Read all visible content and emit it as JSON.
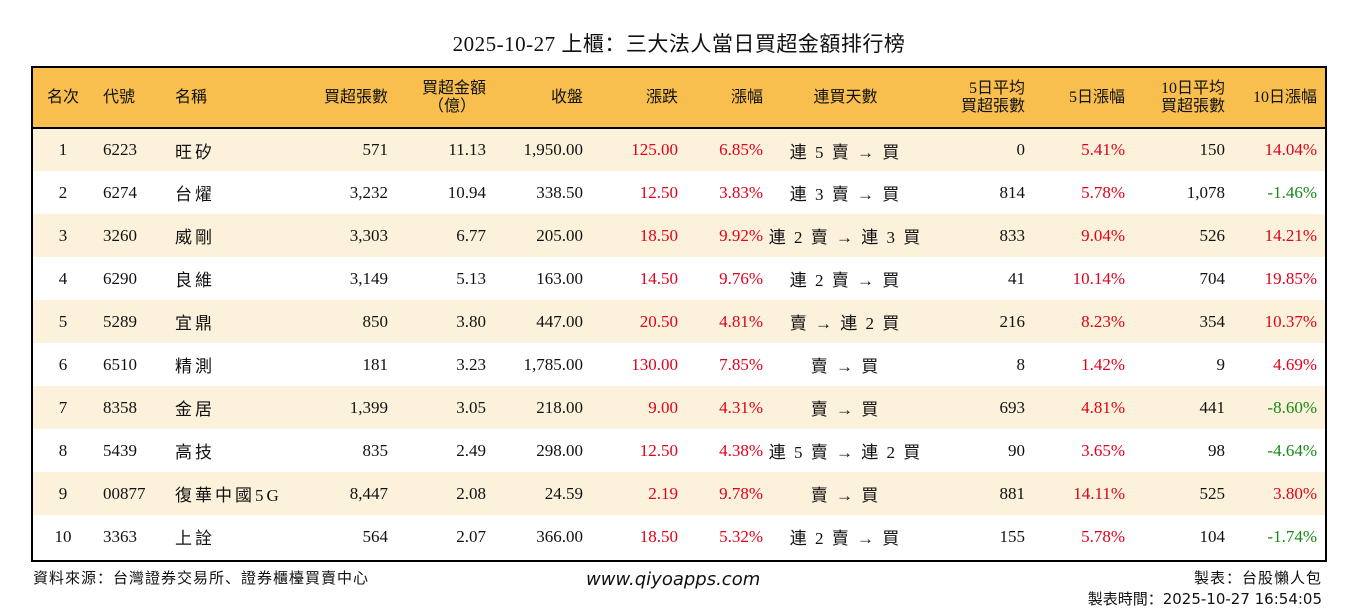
{
  "title": "2025-10-27 上櫃：三大法人當日買超金額排行榜",
  "colors": {
    "header_bg": "#f8bf4e",
    "row_alt_bg": "#fcf1da",
    "up": "#e0001b",
    "down": "#168a16"
  },
  "table": {
    "headers": {
      "rank": "名次",
      "code": "代號",
      "name": "名稱",
      "net_buy_lots": "買超張數",
      "net_buy_amount_1": "買超金額",
      "net_buy_amount_2": "（億）",
      "close": "收盤",
      "change": "漲跌",
      "change_pct": "漲幅",
      "streak": "連買天數",
      "avg5_1": "5日平均",
      "avg5_2": "買超張數",
      "pct5": "5日漲幅",
      "avg10_1": "10日平均",
      "avg10_2": "買超張數",
      "pct10": "10日漲幅"
    },
    "rows": [
      {
        "rank": "1",
        "code": "6223",
        "name": "旺矽",
        "lots": "571",
        "amount": "11.13",
        "close": "1,950.00",
        "change": "125.00",
        "change_pct": "6.85%",
        "streak": "連 5 賣 → 買",
        "avg5": "0",
        "pct5": "5.41%",
        "avg10": "150",
        "pct10": "14.04%",
        "pct10_dir": "up"
      },
      {
        "rank": "2",
        "code": "6274",
        "name": "台燿",
        "lots": "3,232",
        "amount": "10.94",
        "close": "338.50",
        "change": "12.50",
        "change_pct": "3.83%",
        "streak": "連 3 賣 → 買",
        "avg5": "814",
        "pct5": "5.78%",
        "avg10": "1,078",
        "pct10": "-1.46%",
        "pct10_dir": "down"
      },
      {
        "rank": "3",
        "code": "3260",
        "name": "威剛",
        "lots": "3,303",
        "amount": "6.77",
        "close": "205.00",
        "change": "18.50",
        "change_pct": "9.92%",
        "streak": "連 2 賣 → 連 3 買",
        "avg5": "833",
        "pct5": "9.04%",
        "avg10": "526",
        "pct10": "14.21%",
        "pct10_dir": "up"
      },
      {
        "rank": "4",
        "code": "6290",
        "name": "良維",
        "lots": "3,149",
        "amount": "5.13",
        "close": "163.00",
        "change": "14.50",
        "change_pct": "9.76%",
        "streak": "連 2 賣 → 買",
        "avg5": "41",
        "pct5": "10.14%",
        "avg10": "704",
        "pct10": "19.85%",
        "pct10_dir": "up"
      },
      {
        "rank": "5",
        "code": "5289",
        "name": "宜鼎",
        "lots": "850",
        "amount": "3.80",
        "close": "447.00",
        "change": "20.50",
        "change_pct": "4.81%",
        "streak": "賣 → 連 2 買",
        "avg5": "216",
        "pct5": "8.23%",
        "avg10": "354",
        "pct10": "10.37%",
        "pct10_dir": "up"
      },
      {
        "rank": "6",
        "code": "6510",
        "name": "精測",
        "lots": "181",
        "amount": "3.23",
        "close": "1,785.00",
        "change": "130.00",
        "change_pct": "7.85%",
        "streak": "賣 → 買",
        "avg5": "8",
        "pct5": "1.42%",
        "avg10": "9",
        "pct10": "4.69%",
        "pct10_dir": "up"
      },
      {
        "rank": "7",
        "code": "8358",
        "name": "金居",
        "lots": "1,399",
        "amount": "3.05",
        "close": "218.00",
        "change": "9.00",
        "change_pct": "4.31%",
        "streak": "賣 → 買",
        "avg5": "693",
        "pct5": "4.81%",
        "avg10": "441",
        "pct10": "-8.60%",
        "pct10_dir": "down"
      },
      {
        "rank": "8",
        "code": "5439",
        "name": "高技",
        "lots": "835",
        "amount": "2.49",
        "close": "298.00",
        "change": "12.50",
        "change_pct": "4.38%",
        "streak": "連 5 賣 → 連 2 買",
        "avg5": "90",
        "pct5": "3.65%",
        "avg10": "98",
        "pct10": "-4.64%",
        "pct10_dir": "down"
      },
      {
        "rank": "9",
        "code": "00877",
        "name": "復華中國5G",
        "lots": "8,447",
        "amount": "2.08",
        "close": "24.59",
        "change": "2.19",
        "change_pct": "9.78%",
        "streak": "賣 → 買",
        "avg5": "881",
        "pct5": "14.11%",
        "avg10": "525",
        "pct10": "3.80%",
        "pct10_dir": "up"
      },
      {
        "rank": "10",
        "code": "3363",
        "name": "上詮",
        "lots": "564",
        "amount": "2.07",
        "close": "366.00",
        "change": "18.50",
        "change_pct": "5.32%",
        "streak": "連 2 賣 → 買",
        "avg5": "155",
        "pct5": "5.78%",
        "avg10": "104",
        "pct10": "-1.74%",
        "pct10_dir": "down"
      }
    ]
  },
  "footer": {
    "source": "資料來源：台灣證券交易所、證券櫃檯買賣中心",
    "site": "www.qiyoapps.com",
    "maker": "製表：台股懶人包",
    "time": "製表時間：2025-10-27 16:54:05"
  }
}
